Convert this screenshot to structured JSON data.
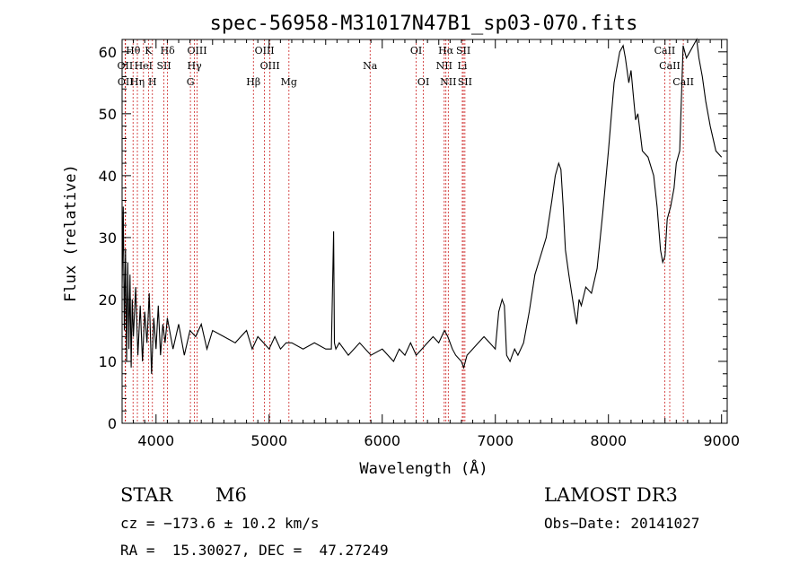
{
  "chart_data": {
    "type": "line",
    "title": "spec-56958-M31017N47B1_sp03-070.fits",
    "xlabel": "Wavelength (Å)",
    "ylabel": "Flux (relative)",
    "xlim": [
      3700,
      9050
    ],
    "ylim": [
      0,
      62
    ],
    "xticks": [
      4000,
      5000,
      6000,
      7000,
      8000,
      9000
    ],
    "yticks": [
      0,
      10,
      20,
      30,
      40,
      50,
      60
    ],
    "grid": false,
    "line_color": "#000000",
    "marker_color": "#cc2222",
    "series": [
      {
        "x": [
          3700,
          3710,
          3720,
          3730,
          3740,
          3750,
          3760,
          3770,
          3780,
          3790,
          3800,
          3820,
          3840,
          3860,
          3880,
          3900,
          3920,
          3940,
          3960,
          3980,
          4000,
          4020,
          4040,
          4060,
          4080,
          4100,
          4150,
          4200,
          4250,
          4300,
          4350,
          4400,
          4450,
          4500,
          4600,
          4700,
          4800,
          4850,
          4900,
          4950,
          5000,
          5050,
          5100,
          5150,
          5200,
          5300,
          5400,
          5500,
          5550,
          5570,
          5577,
          5590,
          5620,
          5700,
          5800,
          5900,
          6000,
          6100,
          6150,
          6200,
          6250,
          6300,
          6350,
          6400,
          6450,
          6500,
          6550,
          6580,
          6620,
          6650,
          6700,
          6720,
          6750,
          6800,
          6850,
          6900,
          6950,
          7000,
          7030,
          7060,
          7080,
          7100,
          7130,
          7150,
          7170,
          7200,
          7250,
          7300,
          7350,
          7400,
          7450,
          7500,
          7530,
          7560,
          7580,
          7600,
          7620,
          7650,
          7700,
          7720,
          7740,
          7760,
          7800,
          7850,
          7900,
          7950,
          8000,
          8050,
          8100,
          8130,
          8150,
          8180,
          8200,
          8220,
          8240,
          8260,
          8280,
          8300,
          8350,
          8400,
          8430,
          8460,
          8480,
          8500,
          8520,
          8550,
          8580,
          8600,
          8630,
          8660,
          8690,
          8720,
          8750,
          8780,
          8800,
          8830,
          8860,
          8900,
          8950,
          9000
        ],
        "values": [
          22,
          35,
          15,
          28,
          10,
          26,
          12,
          24,
          9,
          20,
          14,
          22,
          11,
          19,
          10,
          18,
          13,
          21,
          8,
          17,
          12,
          19,
          11,
          16,
          13,
          17,
          12,
          16,
          11,
          15,
          14,
          16,
          12,
          15,
          14,
          13,
          15,
          12,
          14,
          13,
          12,
          14,
          12,
          13,
          13,
          12,
          13,
          12,
          12,
          31,
          13,
          12,
          13,
          11,
          13,
          11,
          12,
          10,
          12,
          11,
          13,
          11,
          12,
          13,
          14,
          13,
          15,
          14,
          12,
          11,
          10,
          9,
          11,
          12,
          13,
          14,
          13,
          12,
          18,
          20,
          19,
          11,
          10,
          11,
          12,
          11,
          13,
          18,
          24,
          27,
          30,
          36,
          40,
          42,
          41,
          35,
          28,
          24,
          18,
          16,
          20,
          19,
          22,
          21,
          25,
          34,
          44,
          55,
          60,
          61,
          59,
          55,
          57,
          53,
          49,
          50,
          47,
          44,
          43,
          40,
          35,
          28,
          26,
          27,
          33,
          35,
          38,
          42,
          44,
          61,
          59,
          60,
          61,
          62,
          59,
          56,
          52,
          48,
          44,
          43
        ]
      }
    ],
    "lines": [
      {
        "label": "Hθ",
        "x": 3797,
        "row": 1
      },
      {
        "label": "OII",
        "x": 3727,
        "row": 2
      },
      {
        "label": "K",
        "x": 3933,
        "row": 1
      },
      {
        "label": "OII",
        "x": 3730,
        "row": 3
      },
      {
        "label": "HeI",
        "x": 3889,
        "row": 2
      },
      {
        "label": "Hη",
        "x": 3835,
        "row": 3
      },
      {
        "label": "SII",
        "x": 4070,
        "row": 2
      },
      {
        "label": "H",
        "x": 3968,
        "row": 3
      },
      {
        "label": "Hδ",
        "x": 4102,
        "row": 1
      },
      {
        "label": "OIII",
        "x": 4363,
        "row": 1
      },
      {
        "label": "Hγ",
        "x": 4340,
        "row": 2
      },
      {
        "label": "G",
        "x": 4304,
        "row": 3
      },
      {
        "label": "OIII",
        "x": 4959,
        "row": 1
      },
      {
        "label": "OIII",
        "x": 5007,
        "row": 2
      },
      {
        "label": "Hβ",
        "x": 4861,
        "row": 3
      },
      {
        "label": "Mg",
        "x": 5175,
        "row": 3
      },
      {
        "label": "Na",
        "x": 5893,
        "row": 2
      },
      {
        "label": "OI",
        "x": 6300,
        "row": 1
      },
      {
        "label": "OI",
        "x": 6364,
        "row": 3
      },
      {
        "label": "Hα",
        "x": 6563,
        "row": 1
      },
      {
        "label": "NII",
        "x": 6548,
        "row": 2
      },
      {
        "label": "NII",
        "x": 6584,
        "row": 3
      },
      {
        "label": "SII",
        "x": 6717,
        "row": 1
      },
      {
        "label": "Li",
        "x": 6708,
        "row": 2
      },
      {
        "label": "SII",
        "x": 6731,
        "row": 3
      },
      {
        "label": "CaII",
        "x": 8498,
        "row": 1
      },
      {
        "label": "CaII",
        "x": 8542,
        "row": 2
      },
      {
        "label": "CaII",
        "x": 8662,
        "row": 3
      }
    ]
  },
  "info": {
    "object_class": "STAR",
    "subclass": "M6",
    "survey": "LAMOST DR3",
    "cz": "cz = −173.6 ± 10.2 km/s",
    "obs_date": "Obs−Date: 20141027",
    "coords": "RA =  15.30027, DEC =  47.27249"
  }
}
